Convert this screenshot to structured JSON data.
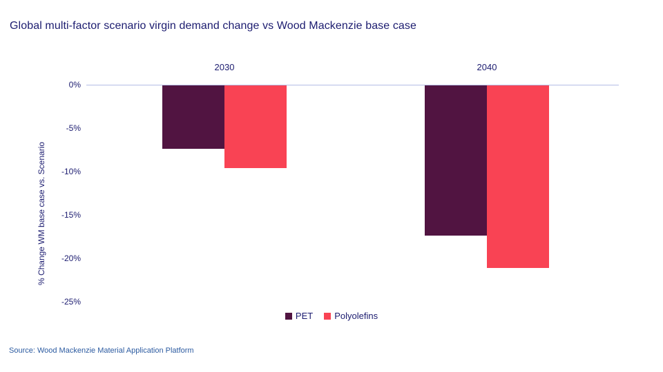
{
  "title": "Global multi-factor scenario virgin demand change vs Wood Mackenzie base case",
  "source": "Source: Wood Mackenzie Material Application Platform",
  "colors": {
    "text_navy": "#1b1b6f",
    "source_text": "#2b5aa0",
    "axis_line": "#b3bbe4",
    "pet_bar": "#511441",
    "polyolefins_bar": "#f94354"
  },
  "chart_data": {
    "type": "bar",
    "title": "Global multi-factor scenario virgin demand change vs Wood Mackenzie base case",
    "categories": [
      "2030",
      "2040"
    ],
    "series": [
      {
        "name": "PET",
        "color": "#511441",
        "values": [
          -7.3,
          -17.3
        ]
      },
      {
        "name": "Polyolefins",
        "color": "#f94354",
        "values": [
          -9.5,
          -21.0
        ]
      }
    ],
    "xlabel": "",
    "ylabel": "% Change WM base case vs. Scenario",
    "unit": "%",
    "ylim": [
      -25,
      0
    ],
    "ytick_values": [
      0,
      -5,
      -10,
      -15,
      -20,
      -25
    ],
    "ytick_labels": [
      "0%",
      "-5%",
      "-10%",
      "-15%",
      "-20%",
      "-25%"
    ],
    "grid": false,
    "legend_position": "bottom-center"
  }
}
